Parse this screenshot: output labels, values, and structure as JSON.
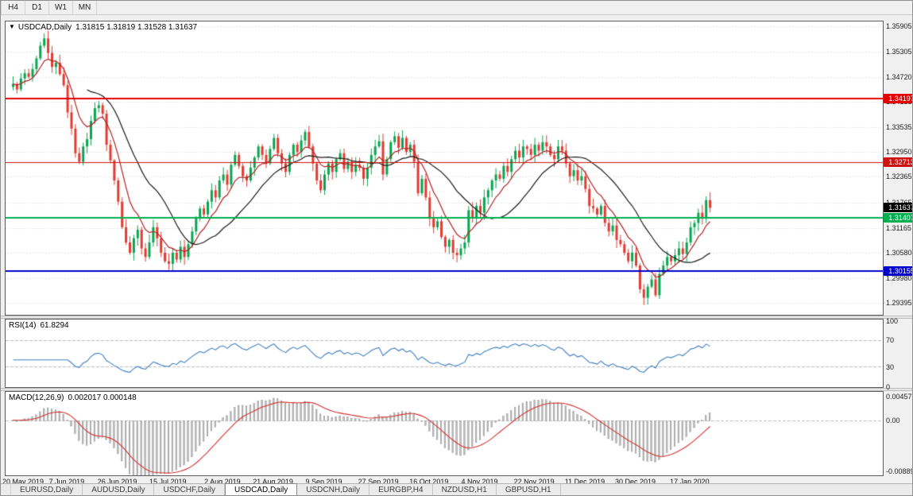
{
  "toolbar": {
    "timeframes": [
      {
        "label": "H4"
      },
      {
        "label": "D1"
      },
      {
        "label": "W1"
      },
      {
        "label": "MN"
      }
    ]
  },
  "chart_data": {
    "type": "candlestick",
    "symbol_title": "USDCAD,Daily",
    "ohlc_text": "1.31815 1.31819 1.31528 1.31637",
    "ohlc_readout": {
      "open": "1.31815",
      "high": "1.31819",
      "low": "1.31528",
      "close": "1.31637"
    },
    "price_axis": {
      "ylim": [
        1.2912,
        1.3602
      ],
      "ticks": [
        "1.35905",
        "1.35305",
        "1.34720",
        "1.34135",
        "1.33535",
        "1.32950",
        "1.32365",
        "1.31765",
        "1.31165",
        "1.30580",
        "1.29980",
        "1.29395"
      ]
    },
    "x_labels": [
      {
        "label": "20 May 2019",
        "index": 0
      },
      {
        "label": "7 Jun 2019",
        "index": 14
      },
      {
        "label": "26 Jun 2019",
        "index": 27
      },
      {
        "label": "15 Jul 2019",
        "index": 40
      },
      {
        "label": "2 Aug 2019",
        "index": 54
      },
      {
        "label": "21 Aug 2019",
        "index": 67
      },
      {
        "label": "9 Sep 2019",
        "index": 80
      },
      {
        "label": "27 Sep 2019",
        "index": 94
      },
      {
        "label": "16 Oct 2019",
        "index": 107
      },
      {
        "label": "4 Nov 2019",
        "index": 120
      },
      {
        "label": "22 Nov 2019",
        "index": 134
      },
      {
        "label": "11 Dec 2019",
        "index": 147
      },
      {
        "label": "30 Dec 2019",
        "index": 160
      },
      {
        "label": "17 Jan 2020",
        "index": 174
      }
    ],
    "first_open": 1.3448,
    "closes": [
      1.3455,
      1.3442,
      1.3468,
      1.348,
      1.3472,
      1.349,
      1.3515,
      1.3545,
      1.3562,
      1.3528,
      1.3495,
      1.3505,
      1.3478,
      1.3452,
      1.3388,
      1.335,
      1.3292,
      1.3272,
      1.3308,
      1.3325,
      1.3368,
      1.3398,
      1.3405,
      1.3385,
      1.3312,
      1.3275,
      1.3228,
      1.3178,
      1.3118,
      1.3082,
      1.3058,
      1.3092,
      1.3112,
      1.3068,
      1.3048,
      1.3082,
      1.3118,
      1.3092,
      1.3058,
      1.3038,
      1.3032,
      1.3058,
      1.3042,
      1.3072,
      1.3048,
      1.3078,
      1.3108,
      1.3138,
      1.3162,
      1.3148,
      1.3178,
      1.3205,
      1.3188,
      1.3228,
      1.3242,
      1.3218,
      1.3265,
      1.3288,
      1.3262,
      1.3238,
      1.3228,
      1.3258,
      1.3282,
      1.3308,
      1.3288,
      1.3268,
      1.3302,
      1.3328,
      1.3292,
      1.3268,
      1.3248,
      1.3288,
      1.3312,
      1.3295,
      1.3322,
      1.3342,
      1.3308,
      1.3268,
      1.3228,
      1.3205,
      1.3242,
      1.3268,
      1.3248,
      1.3278,
      1.3292,
      1.3255,
      1.3272,
      1.3248,
      1.3265,
      1.3258,
      1.3232,
      1.3258,
      1.3288,
      1.3308,
      1.332,
      1.3242,
      1.3278,
      1.3318,
      1.3332,
      1.3305,
      1.3328,
      1.3295,
      1.3312,
      1.3272,
      1.3198,
      1.3232,
      1.3188,
      1.3138,
      1.3118,
      1.3132,
      1.3095,
      1.3072,
      1.3088,
      1.3058,
      1.3052,
      1.3068,
      1.3082,
      1.3158,
      1.3142,
      1.3168,
      1.3152,
      1.3188,
      1.3205,
      1.3228,
      1.3242,
      1.3232,
      1.3262,
      1.3248,
      1.3278,
      1.3298,
      1.3282,
      1.3308,
      1.3302,
      1.3288,
      1.3312,
      1.3298,
      1.3318,
      1.3308,
      1.3288,
      1.3278,
      1.3308,
      1.3298,
      1.3268,
      1.3238,
      1.3252,
      1.3228,
      1.3238,
      1.3208,
      1.3168,
      1.3162,
      1.3148,
      1.3168,
      1.3128,
      1.3108,
      1.3122,
      1.3088,
      1.3078,
      1.3058,
      1.3038,
      1.3058,
      1.3028,
      1.2972,
      1.2952,
      1.2978,
      1.2995,
      1.2958,
      1.3008,
      1.3028,
      1.3048,
      1.3038,
      1.3052,
      1.3068,
      1.3055,
      1.3082,
      1.3118,
      1.3128,
      1.3152,
      1.3138,
      1.31815,
      1.31637
    ],
    "candle_colors": {
      "up": "#0aa551",
      "down": "#e23b32"
    },
    "grid_color": "#d9d9d9",
    "moving_averages": [
      {
        "type": "ema",
        "period": 8,
        "color": "#b22222"
      },
      {
        "type": "sma",
        "period": 20,
        "color": "#1a1a1a"
      }
    ],
    "hlines": [
      {
        "value": 1.34197,
        "label": "1.34197",
        "color": "#e60000",
        "width": 2
      },
      {
        "value": 1.32713,
        "label": "1.32713",
        "color": "#cf1212",
        "width": 1
      },
      {
        "value": 1.31407,
        "label": "1.31407",
        "color": "#00b050",
        "width": 2
      },
      {
        "value": 1.30155,
        "label": "1.30155",
        "color": "#0000cd",
        "width": 2
      }
    ],
    "current_price": {
      "value": 1.31637,
      "label": "1.31637",
      "color": "#000000"
    },
    "rsi": {
      "label": "RSI(14)",
      "value_text": "61.8294",
      "period": 14,
      "ylim": [
        0,
        100
      ],
      "ticks": [
        "100",
        "70",
        "30",
        "0"
      ],
      "levels": [
        70,
        30
      ],
      "color": "#3f7fc1",
      "level_color": "#bdbdbd"
    },
    "macd": {
      "label": "MACD(12,26,9)",
      "value_text": "0.002017 0.000148",
      "fast": 12,
      "slow": 26,
      "signal": 9,
      "ylim": [
        -0.008891,
        0.004572
      ],
      "axis_labels": {
        "max": "0.004572",
        "zero": "0.00",
        "min": "-0.008891"
      },
      "hist_color": "#bdbdbd",
      "hist_edge": "#9e9e9e",
      "signal_color": "#d32f2f",
      "zero_line_color": "#c0c0c0"
    }
  },
  "tabs": {
    "items": [
      {
        "label": "EURUSD,Daily",
        "active": false
      },
      {
        "label": "AUDUSD,Daily",
        "active": false
      },
      {
        "label": "USDCHF,Daily",
        "active": false
      },
      {
        "label": "USDCAD,Daily",
        "active": true
      },
      {
        "label": "USDCNH,Daily",
        "active": false
      },
      {
        "label": "EURGBP,H4",
        "active": false
      },
      {
        "label": "NZDUSD,H1",
        "active": false
      },
      {
        "label": "GBPUSD,H1",
        "active": false
      }
    ]
  }
}
